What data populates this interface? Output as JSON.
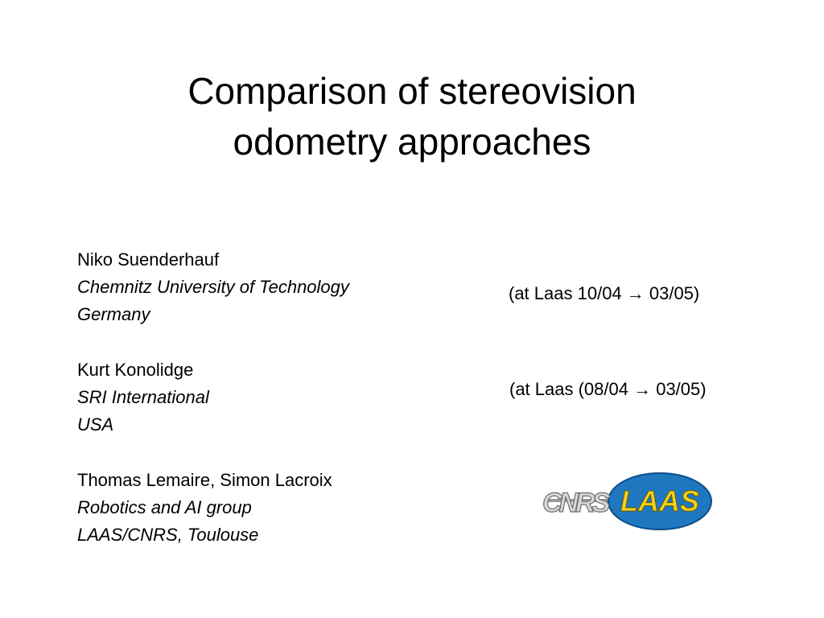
{
  "title": {
    "lines": [
      "Comparison of stereovision",
      "odometry approaches"
    ]
  },
  "authors": [
    {
      "name": "Niko Suenderhauf",
      "affiliation": "Chemnitz University of Technology",
      "location": "Germany"
    },
    {
      "name": "Kurt Konolidge",
      "affiliation": "SRI International",
      "location": "USA"
    },
    {
      "name": "Thomas Lemaire, Simon Lacroix",
      "affiliation": "Robotics and AI group",
      "location": "LAAS/CNRS, Toulouse"
    }
  ],
  "notes": [
    "(at Laas 10/04 → 03/05)",
    "(at Laas (08/04 → 03/05)"
  ],
  "logo": {
    "cnrs": "CNRS",
    "laas": "LAAS"
  }
}
